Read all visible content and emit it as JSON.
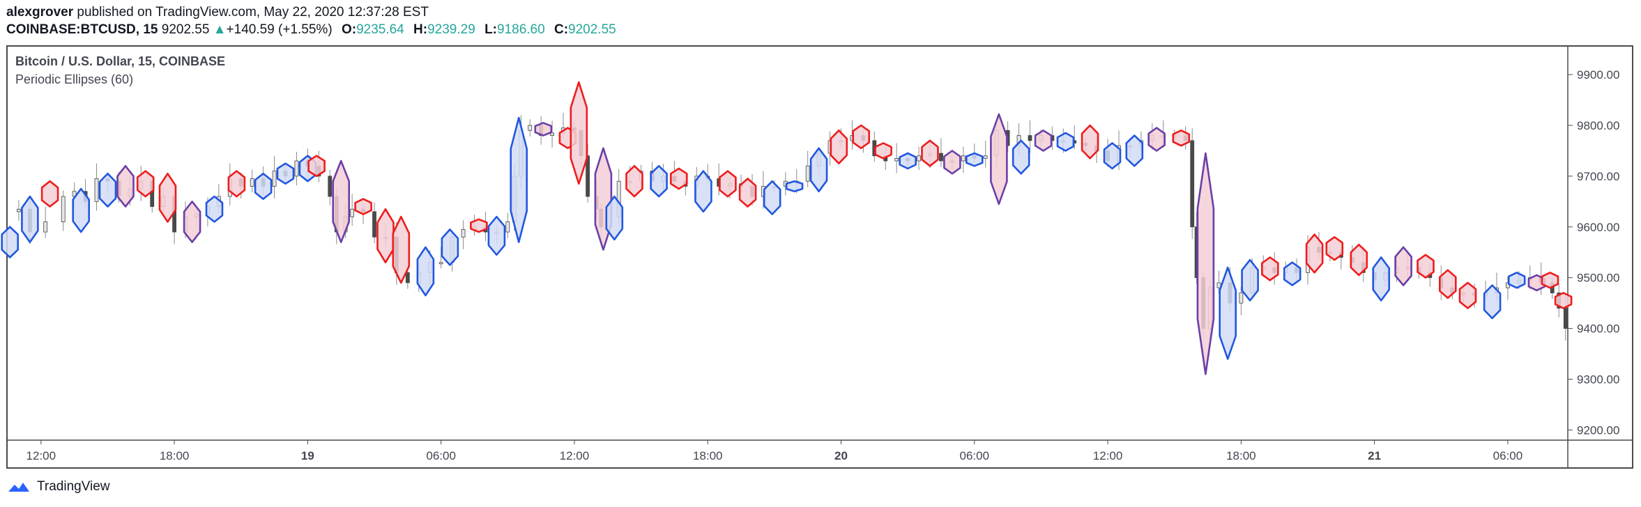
{
  "header": {
    "author": "alexgrover",
    "published": "published on TradingView.com, May 22, 2020 12:37:28 EST",
    "symbol": "COINBASE:BTCUSD, 15",
    "last": "9202.55",
    "change_arrow": "▲",
    "change": "+140.59 (+1.55%)",
    "o_label": "O:",
    "o_value": "9235.64",
    "h_label": "H:",
    "h_value": "9239.29",
    "l_label": "L:",
    "l_value": "9186.60",
    "c_label": "C:",
    "c_value": "9202.55"
  },
  "legend": {
    "series": "Bitcoin / U.S. Dollar, 15, COINBASE",
    "indicator": "Periodic Ellipses (60)"
  },
  "footer": {
    "brand": "TradingView",
    "logo_icon": "tradingview-cloud-icon"
  },
  "colors": {
    "up_ellipse_stroke": "#2157e0",
    "up_ellipse_fill": "#d2dcf5",
    "down_ellipse_stroke": "#ee1c1c",
    "down_ellipse_fill": "#f3cfd6",
    "mixed_ellipse_stroke": "#6a3fa8",
    "candle_up": "#e6e6e6",
    "candle_down": "#4a4a4a",
    "candle_border": "#444444",
    "accent_green": "#26a69a"
  },
  "chart_data": {
    "type": "candlestick",
    "title": "Bitcoin / U.S. Dollar, 15, COINBASE",
    "indicator": "Periodic Ellipses (60)",
    "y_ticks": [
      "9200.00",
      "9300.00",
      "9400.00",
      "9500.00",
      "9600.00",
      "9700.00",
      "9800.00",
      "9900.00"
    ],
    "y_tick_values": [
      9200,
      9300,
      9400,
      9500,
      9600,
      9700,
      9800,
      9900
    ],
    "ylim": [
      9180,
      9955
    ],
    "x_tick_labels": [
      "12:00",
      "18:00",
      "19",
      "06:00",
      "12:00",
      "18:00",
      "20",
      "06:00",
      "12:00",
      "18:00",
      "21",
      "06:00"
    ],
    "x_tick_hours": [
      12,
      18,
      24,
      30,
      36,
      42,
      48,
      54,
      60,
      66,
      72,
      78
    ],
    "x_tick_bold": [
      false,
      false,
      true,
      false,
      false,
      false,
      true,
      false,
      false,
      false,
      true,
      false
    ],
    "xlim_hours": [
      10.5,
      80.7
    ],
    "ellipses": [
      {
        "t": 10.6,
        "hi": 9600,
        "lo": 9540,
        "c": "up"
      },
      {
        "t": 11.5,
        "hi": 9660,
        "lo": 9570,
        "c": "up"
      },
      {
        "t": 12.4,
        "hi": 9690,
        "lo": 9640,
        "c": "down"
      },
      {
        "t": 13.8,
        "hi": 9675,
        "lo": 9590,
        "c": "up"
      },
      {
        "t": 15.0,
        "hi": 9705,
        "lo": 9640,
        "c": "up"
      },
      {
        "t": 15.8,
        "hi": 9720,
        "lo": 9640,
        "c": "mixed"
      },
      {
        "t": 16.7,
        "hi": 9710,
        "lo": 9660,
        "c": "down"
      },
      {
        "t": 17.7,
        "hi": 9705,
        "lo": 9610,
        "c": "down"
      },
      {
        "t": 18.8,
        "hi": 9650,
        "lo": 9570,
        "c": "mixed"
      },
      {
        "t": 19.8,
        "hi": 9660,
        "lo": 9610,
        "c": "up"
      },
      {
        "t": 20.8,
        "hi": 9710,
        "lo": 9660,
        "c": "down"
      },
      {
        "t": 22.0,
        "hi": 9705,
        "lo": 9655,
        "c": "up"
      },
      {
        "t": 23.0,
        "hi": 9725,
        "lo": 9685,
        "c": "up"
      },
      {
        "t": 24.0,
        "hi": 9740,
        "lo": 9690,
        "c": "up"
      },
      {
        "t": 24.4,
        "hi": 9740,
        "lo": 9700,
        "c": "down"
      },
      {
        "t": 25.5,
        "hi": 9730,
        "lo": 9570,
        "c": "mixed"
      },
      {
        "t": 26.5,
        "hi": 9655,
        "lo": 9625,
        "c": "down"
      },
      {
        "t": 27.5,
        "hi": 9635,
        "lo": 9530,
        "c": "down"
      },
      {
        "t": 28.2,
        "hi": 9620,
        "lo": 9490,
        "c": "down"
      },
      {
        "t": 29.3,
        "hi": 9560,
        "lo": 9465,
        "c": "up"
      },
      {
        "t": 30.4,
        "hi": 9595,
        "lo": 9525,
        "c": "up"
      },
      {
        "t": 31.7,
        "hi": 9615,
        "lo": 9590,
        "c": "down"
      },
      {
        "t": 32.5,
        "hi": 9620,
        "lo": 9545,
        "c": "up"
      },
      {
        "t": 33.5,
        "hi": 9815,
        "lo": 9570,
        "c": "up"
      },
      {
        "t": 34.6,
        "hi": 9805,
        "lo": 9780,
        "c": "mixed"
      },
      {
        "t": 35.7,
        "hi": 9795,
        "lo": 9755,
        "c": "down"
      },
      {
        "t": 36.2,
        "hi": 9885,
        "lo": 9685,
        "c": "down"
      },
      {
        "t": 37.3,
        "hi": 9755,
        "lo": 9555,
        "c": "mixed"
      },
      {
        "t": 37.8,
        "hi": 9660,
        "lo": 9575,
        "c": "up"
      },
      {
        "t": 38.7,
        "hi": 9720,
        "lo": 9660,
        "c": "down"
      },
      {
        "t": 39.8,
        "hi": 9720,
        "lo": 9660,
        "c": "up"
      },
      {
        "t": 40.7,
        "hi": 9715,
        "lo": 9675,
        "c": "down"
      },
      {
        "t": 41.8,
        "hi": 9710,
        "lo": 9630,
        "c": "up"
      },
      {
        "t": 42.9,
        "hi": 9710,
        "lo": 9660,
        "c": "down"
      },
      {
        "t": 43.8,
        "hi": 9695,
        "lo": 9640,
        "c": "down"
      },
      {
        "t": 44.9,
        "hi": 9690,
        "lo": 9625,
        "c": "up"
      },
      {
        "t": 45.9,
        "hi": 9690,
        "lo": 9670,
        "c": "up"
      },
      {
        "t": 47.0,
        "hi": 9755,
        "lo": 9670,
        "c": "up"
      },
      {
        "t": 47.9,
        "hi": 9790,
        "lo": 9725,
        "c": "down"
      },
      {
        "t": 48.9,
        "hi": 9800,
        "lo": 9755,
        "c": "down"
      },
      {
        "t": 49.9,
        "hi": 9765,
        "lo": 9735,
        "c": "down"
      },
      {
        "t": 51.0,
        "hi": 9745,
        "lo": 9715,
        "c": "up"
      },
      {
        "t": 52.0,
        "hi": 9770,
        "lo": 9720,
        "c": "down"
      },
      {
        "t": 53.0,
        "hi": 9750,
        "lo": 9705,
        "c": "mixed"
      },
      {
        "t": 54.0,
        "hi": 9745,
        "lo": 9720,
        "c": "up"
      },
      {
        "t": 55.1,
        "hi": 9822,
        "lo": 9645,
        "c": "mixed"
      },
      {
        "t": 56.1,
        "hi": 9770,
        "lo": 9705,
        "c": "up"
      },
      {
        "t": 57.1,
        "hi": 9790,
        "lo": 9750,
        "c": "mixed"
      },
      {
        "t": 58.1,
        "hi": 9785,
        "lo": 9750,
        "c": "up"
      },
      {
        "t": 59.2,
        "hi": 9800,
        "lo": 9735,
        "c": "down"
      },
      {
        "t": 60.2,
        "hi": 9765,
        "lo": 9715,
        "c": "up"
      },
      {
        "t": 61.2,
        "hi": 9780,
        "lo": 9720,
        "c": "up"
      },
      {
        "t": 62.2,
        "hi": 9795,
        "lo": 9750,
        "c": "mixed"
      },
      {
        "t": 63.3,
        "hi": 9790,
        "lo": 9760,
        "c": "down"
      },
      {
        "t": 64.4,
        "hi": 9745,
        "lo": 9310,
        "c": "mixed"
      },
      {
        "t": 65.4,
        "hi": 9520,
        "lo": 9340,
        "c": "up"
      },
      {
        "t": 66.4,
        "hi": 9535,
        "lo": 9455,
        "c": "up"
      },
      {
        "t": 67.3,
        "hi": 9540,
        "lo": 9495,
        "c": "down"
      },
      {
        "t": 68.3,
        "hi": 9530,
        "lo": 9485,
        "c": "up"
      },
      {
        "t": 69.3,
        "hi": 9585,
        "lo": 9510,
        "c": "down"
      },
      {
        "t": 70.2,
        "hi": 9580,
        "lo": 9535,
        "c": "down"
      },
      {
        "t": 71.3,
        "hi": 9565,
        "lo": 9505,
        "c": "down"
      },
      {
        "t": 72.3,
        "hi": 9540,
        "lo": 9455,
        "c": "up"
      },
      {
        "t": 73.3,
        "hi": 9560,
        "lo": 9485,
        "c": "mixed"
      },
      {
        "t": 74.3,
        "hi": 9545,
        "lo": 9500,
        "c": "down"
      },
      {
        "t": 75.3,
        "hi": 9515,
        "lo": 9460,
        "c": "down"
      },
      {
        "t": 76.2,
        "hi": 9490,
        "lo": 9440,
        "c": "down"
      },
      {
        "t": 77.3,
        "hi": 9485,
        "lo": 9420,
        "c": "up"
      },
      {
        "t": 78.4,
        "hi": 9510,
        "lo": 9480,
        "c": "up"
      },
      {
        "t": 79.3,
        "hi": 9505,
        "lo": 9475,
        "c": "mixed"
      },
      {
        "t": 79.9,
        "hi": 9510,
        "lo": 9480,
        "c": "down"
      },
      {
        "t": 80.5,
        "hi": 9470,
        "lo": 9440,
        "c": "down"
      }
    ],
    "close_path": [
      [
        10.5,
        9630
      ],
      [
        11.0,
        9635
      ],
      [
        11.5,
        9590
      ],
      [
        12.2,
        9610
      ],
      [
        13.0,
        9660
      ],
      [
        13.5,
        9670
      ],
      [
        14.0,
        9650
      ],
      [
        14.5,
        9695
      ],
      [
        15.0,
        9690
      ],
      [
        15.5,
        9660
      ],
      [
        16.0,
        9675
      ],
      [
        16.5,
        9690
      ],
      [
        17.0,
        9640
      ],
      [
        17.5,
        9660
      ],
      [
        18.0,
        9590
      ],
      [
        18.5,
        9620
      ],
      [
        19.0,
        9625
      ],
      [
        19.5,
        9640
      ],
      [
        20.0,
        9660
      ],
      [
        20.5,
        9695
      ],
      [
        21.0,
        9680
      ],
      [
        21.5,
        9695
      ],
      [
        22.0,
        9680
      ],
      [
        22.5,
        9710
      ],
      [
        23.0,
        9700
      ],
      [
        23.5,
        9730
      ],
      [
        24.0,
        9720
      ],
      [
        24.5,
        9700
      ],
      [
        25.0,
        9660
      ],
      [
        25.3,
        9590
      ],
      [
        25.7,
        9620
      ],
      [
        26.0,
        9635
      ],
      [
        26.5,
        9630
      ],
      [
        27.0,
        9580
      ],
      [
        27.5,
        9580
      ],
      [
        28.0,
        9510
      ],
      [
        28.5,
        9490
      ],
      [
        29.0,
        9510
      ],
      [
        29.5,
        9530
      ],
      [
        30.0,
        9530
      ],
      [
        30.5,
        9580
      ],
      [
        31.0,
        9595
      ],
      [
        31.5,
        9600
      ],
      [
        32.0,
        9590
      ],
      [
        32.5,
        9590
      ],
      [
        33.0,
        9610
      ],
      [
        33.3,
        9700
      ],
      [
        33.6,
        9790
      ],
      [
        34.0,
        9800
      ],
      [
        34.5,
        9780
      ],
      [
        35.0,
        9785
      ],
      [
        35.5,
        9795
      ],
      [
        36.0,
        9790
      ],
      [
        36.3,
        9740
      ],
      [
        36.6,
        9660
      ],
      [
        37.0,
        9635
      ],
      [
        37.2,
        9600
      ],
      [
        37.6,
        9620
      ],
      [
        38.0,
        9690
      ],
      [
        38.5,
        9690
      ],
      [
        39.0,
        9710
      ],
      [
        39.5,
        9690
      ],
      [
        40.0,
        9700
      ],
      [
        40.5,
        9690
      ],
      [
        41.0,
        9680
      ],
      [
        41.5,
        9700
      ],
      [
        42.0,
        9695
      ],
      [
        42.5,
        9680
      ],
      [
        43.0,
        9685
      ],
      [
        43.5,
        9680
      ],
      [
        44.0,
        9660
      ],
      [
        44.5,
        9680
      ],
      [
        45.0,
        9680
      ],
      [
        45.5,
        9690
      ],
      [
        46.0,
        9690
      ],
      [
        46.5,
        9720
      ],
      [
        47.0,
        9745
      ],
      [
        47.5,
        9770
      ],
      [
        48.0,
        9770
      ],
      [
        48.5,
        9780
      ],
      [
        49.0,
        9770
      ],
      [
        49.5,
        9740
      ],
      [
        50.0,
        9730
      ],
      [
        50.5,
        9735
      ],
      [
        51.0,
        9730
      ],
      [
        51.5,
        9740
      ],
      [
        52.0,
        9745
      ],
      [
        52.5,
        9730
      ],
      [
        53.0,
        9730
      ],
      [
        53.5,
        9740
      ],
      [
        54.0,
        9735
      ],
      [
        54.5,
        9740
      ],
      [
        55.0,
        9790
      ],
      [
        55.5,
        9760
      ],
      [
        56.0,
        9780
      ],
      [
        56.5,
        9770
      ],
      [
        57.0,
        9780
      ],
      [
        57.5,
        9770
      ],
      [
        58.0,
        9770
      ],
      [
        58.5,
        9765
      ],
      [
        59.0,
        9760
      ],
      [
        59.5,
        9750
      ],
      [
        60.0,
        9730
      ],
      [
        60.5,
        9760
      ],
      [
        61.0,
        9760
      ],
      [
        61.5,
        9770
      ],
      [
        62.0,
        9780
      ],
      [
        62.5,
        9780
      ],
      [
        63.0,
        9780
      ],
      [
        63.5,
        9770
      ],
      [
        63.8,
        9600
      ],
      [
        64.0,
        9500
      ],
      [
        64.3,
        9400
      ],
      [
        64.6,
        9480
      ],
      [
        65.0,
        9490
      ],
      [
        65.5,
        9450
      ],
      [
        66.0,
        9470
      ],
      [
        66.5,
        9520
      ],
      [
        67.0,
        9520
      ],
      [
        67.5,
        9510
      ],
      [
        68.0,
        9520
      ],
      [
        68.5,
        9510
      ],
      [
        69.0,
        9560
      ],
      [
        69.5,
        9550
      ],
      [
        70.0,
        9550
      ],
      [
        70.5,
        9540
      ],
      [
        71.0,
        9530
      ],
      [
        71.5,
        9510
      ],
      [
        72.0,
        9495
      ],
      [
        72.5,
        9510
      ],
      [
        73.0,
        9520
      ],
      [
        73.5,
        9520
      ],
      [
        74.0,
        9510
      ],
      [
        74.5,
        9500
      ],
      [
        75.0,
        9480
      ],
      [
        75.5,
        9470
      ],
      [
        76.0,
        9470
      ],
      [
        76.5,
        9465
      ],
      [
        77.0,
        9470
      ],
      [
        77.5,
        9480
      ],
      [
        78.0,
        9490
      ],
      [
        78.5,
        9495
      ],
      [
        79.0,
        9500
      ],
      [
        79.5,
        9490
      ],
      [
        80.0,
        9470
      ],
      [
        80.3,
        9440
      ],
      [
        80.6,
        9400
      ]
    ]
  }
}
